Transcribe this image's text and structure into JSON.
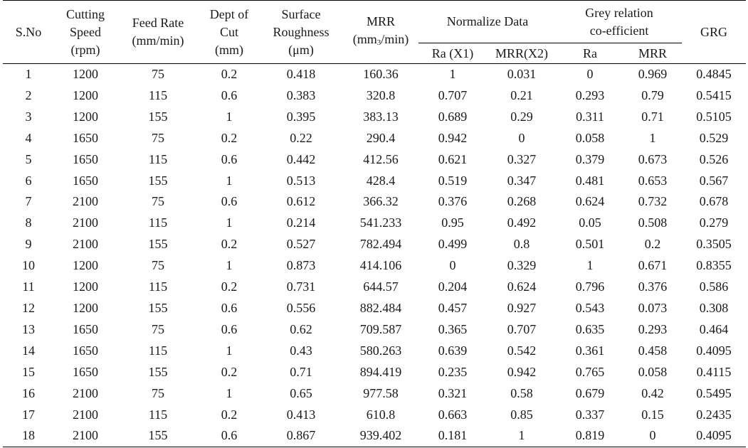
{
  "headers": {
    "sno": "S.No",
    "cutting_speed": [
      "Cutting",
      "Speed",
      "(rpm)"
    ],
    "feed_rate": [
      "Feed Rate",
      "(mm/min)"
    ],
    "depth_of_cut": [
      "Dept of",
      "Cut",
      "(mm)"
    ],
    "surface_roughness": [
      "Surface",
      "Roughness",
      "(μm)"
    ],
    "mrr": [
      "MRR",
      "(mm",
      "3",
      "/min)"
    ],
    "normalize_group": "Normalize Data",
    "normalize_sub": [
      "Ra (X1)",
      "MRR(X2)"
    ],
    "grey_group": [
      "Grey relation",
      "co-efficient"
    ],
    "grey_sub": [
      "Ra",
      "MRR"
    ],
    "grg": "GRG"
  },
  "rows": [
    [
      "1",
      "1200",
      "75",
      "0.2",
      "0.418",
      "160.36",
      "1",
      "0.031",
      "0",
      "0.969",
      "0.4845"
    ],
    [
      "2",
      "1200",
      "115",
      "0.6",
      "0.383",
      "320.8",
      "0.707",
      "0.21",
      "0.293",
      "0.79",
      "0.5415"
    ],
    [
      "3",
      "1200",
      "155",
      "1",
      "0.395",
      "383.13",
      "0.689",
      "0.29",
      "0.311",
      "0.71",
      "0.5105"
    ],
    [
      "4",
      "1650",
      "75",
      "0.2",
      "0.22",
      "290.4",
      "0.942",
      "0",
      "0.058",
      "1",
      "0.529"
    ],
    [
      "5",
      "1650",
      "115",
      "0.6",
      "0.442",
      "412.56",
      "0.621",
      "0.327",
      "0.379",
      "0.673",
      "0.526"
    ],
    [
      "6",
      "1650",
      "155",
      "1",
      "0.513",
      "428.4",
      "0.519",
      "0.347",
      "0.481",
      "0.653",
      "0.567"
    ],
    [
      "7",
      "2100",
      "75",
      "0.6",
      "0.612",
      "366.32",
      "0.376",
      "0.268",
      "0.624",
      "0.732",
      "0.678"
    ],
    [
      "8",
      "2100",
      "115",
      "1",
      "0.214",
      "541.233",
      "0.95",
      "0.492",
      "0.05",
      "0.508",
      "0.279"
    ],
    [
      "9",
      "2100",
      "155",
      "0.2",
      "0.527",
      "782.494",
      "0.499",
      "0.8",
      "0.501",
      "0.2",
      "0.3505"
    ],
    [
      "10",
      "1200",
      "75",
      "1",
      "0.873",
      "414.106",
      "0",
      "0.329",
      "1",
      "0.671",
      "0.8355"
    ],
    [
      "11",
      "1200",
      "115",
      "0.2",
      "0.731",
      "644.57",
      "0.204",
      "0.624",
      "0.796",
      "0.376",
      "0.586"
    ],
    [
      "12",
      "1200",
      "155",
      "0.6",
      "0.556",
      "882.484",
      "0.457",
      "0.927",
      "0.543",
      "0.073",
      "0.308"
    ],
    [
      "13",
      "1650",
      "75",
      "0.6",
      "0.62",
      "709.587",
      "0.365",
      "0.707",
      "0.635",
      "0.293",
      "0.464"
    ],
    [
      "14",
      "1650",
      "115",
      "1",
      "0.43",
      "580.263",
      "0.639",
      "0.542",
      "0.361",
      "0.458",
      "0.4095"
    ],
    [
      "15",
      "1650",
      "155",
      "0.2",
      "0.71",
      "894.419",
      "0.235",
      "0.942",
      "0.765",
      "0.058",
      "0.4115"
    ],
    [
      "16",
      "2100",
      "75",
      "1",
      "0.65",
      "977.58",
      "0.321",
      "0.58",
      "0.679",
      "0.42",
      "0.5495"
    ],
    [
      "17",
      "2100",
      "115",
      "0.2",
      "0.413",
      "610.8",
      "0.663",
      "0.85",
      "0.337",
      "0.15",
      "0.2435"
    ],
    [
      "18",
      "2100",
      "155",
      "0.6",
      "0.867",
      "939.402",
      "0.181",
      "1",
      "0.819",
      "0",
      "0.4095"
    ]
  ]
}
